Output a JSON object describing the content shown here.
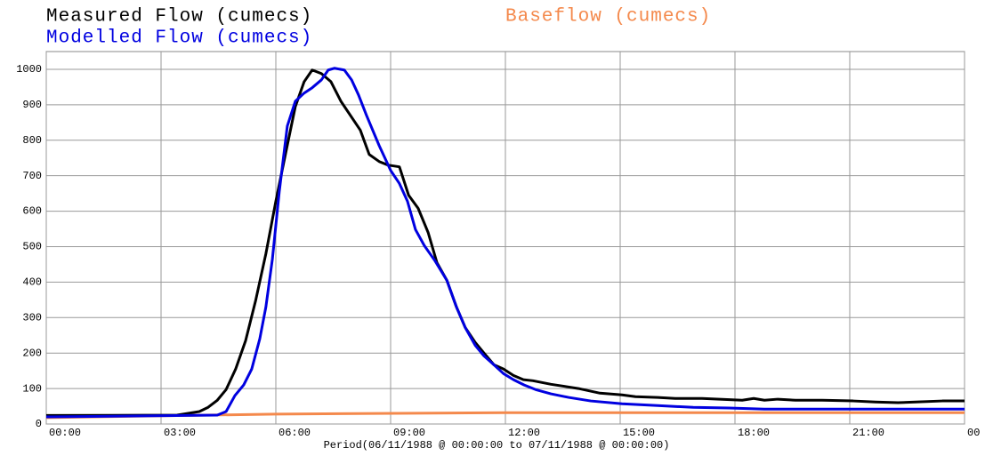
{
  "chart_data": {
    "type": "line",
    "xlabel": "Period(06/11/1988 @ 00:00:00 to 07/11/1988 @ 00:00:00)",
    "xlim": [
      0,
      24
    ],
    "xticks": [
      {
        "value": 0,
        "label": "00:00"
      },
      {
        "value": 3,
        "label": "03:00"
      },
      {
        "value": 6,
        "label": "06:00"
      },
      {
        "value": 9,
        "label": "09:00"
      },
      {
        "value": 12,
        "label": "12:00"
      },
      {
        "value": 15,
        "label": "15:00"
      },
      {
        "value": 18,
        "label": "18:00"
      },
      {
        "value": 21,
        "label": "21:00"
      },
      {
        "value": 24,
        "label": "00"
      }
    ],
    "ylim": [
      0,
      1050
    ],
    "yticks": [
      0,
      100,
      200,
      300,
      400,
      500,
      600,
      700,
      800,
      900,
      1000
    ],
    "grid": true,
    "series": [
      {
        "name": "Measured Flow (cumecs)",
        "color": "#000000",
        "x": [
          0,
          3.42,
          4.0,
          4.23,
          4.47,
          4.7,
          4.95,
          5.21,
          5.47,
          5.74,
          6.0,
          6.26,
          6.51,
          6.74,
          6.95,
          7.19,
          7.44,
          7.7,
          7.98,
          8.21,
          8.44,
          8.7,
          8.93,
          9.23,
          9.47,
          9.72,
          9.98,
          10.21,
          10.47,
          10.72,
          10.95,
          11.21,
          11.44,
          11.7,
          11.95,
          12.21,
          12.47,
          12.72,
          13.19,
          13.91,
          14.47,
          15.05,
          15.4,
          15.98,
          16.44,
          17.14,
          17.6,
          18.19,
          18.49,
          18.77,
          19.12,
          19.58,
          20.28,
          21.09,
          21.67,
          22.26,
          22.72,
          23.42,
          24
        ],
        "values": [
          24,
          25,
          35,
          47,
          67,
          97,
          155,
          235,
          347,
          480,
          628,
          765,
          895,
          965,
          998,
          988,
          965,
          910,
          865,
          828,
          760,
          740,
          730,
          725,
          645,
          608,
          540,
          455,
          405,
          330,
          272,
          230,
          200,
          167,
          155,
          137,
          125,
          122,
          112,
          100,
          87,
          82,
          77,
          75,
          72,
          72,
          70,
          67,
          72,
          67,
          70,
          67,
          67,
          65,
          62,
          60,
          62,
          65,
          65
        ]
      },
      {
        "name": "Baseflow (cumecs)",
        "color": "#f4894c",
        "x": [
          0,
          6,
          12,
          24
        ],
        "values": [
          18,
          28,
          32,
          32
        ]
      },
      {
        "name": "Modelled Flow (cumecs)",
        "color": "#0000e0",
        "x": [
          0,
          4.47,
          4.7,
          4.93,
          5.16,
          5.37,
          5.58,
          5.74,
          5.91,
          6.09,
          6.3,
          6.51,
          6.74,
          6.95,
          7.19,
          7.37,
          7.53,
          7.79,
          7.98,
          8.16,
          8.37,
          8.7,
          9.0,
          9.23,
          9.44,
          9.65,
          9.88,
          10.16,
          10.47,
          10.72,
          10.95,
          11.21,
          11.44,
          11.7,
          11.95,
          12.21,
          12.49,
          12.79,
          13.19,
          13.65,
          14.23,
          15.05,
          15.98,
          16.91,
          17.84,
          18.77,
          20.16,
          22.02,
          24
        ],
        "values": [
          20,
          25,
          35,
          80,
          110,
          155,
          240,
          330,
          465,
          655,
          840,
          910,
          933,
          948,
          970,
          998,
          1003,
          998,
          970,
          928,
          870,
          785,
          715,
          678,
          628,
          548,
          503,
          460,
          405,
          330,
          272,
          222,
          192,
          167,
          142,
          125,
          110,
          97,
          85,
          75,
          65,
          57,
          52,
          47,
          45,
          42,
          42,
          42,
          42
        ]
      }
    ]
  }
}
